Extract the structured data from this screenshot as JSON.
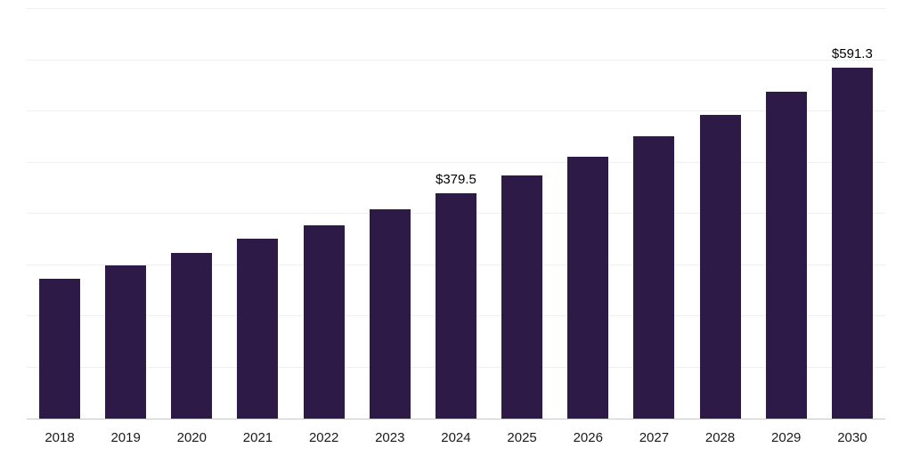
{
  "chart_data": {
    "type": "bar",
    "title": "",
    "xlabel": "",
    "ylabel": "",
    "categories": [
      "2018",
      "2019",
      "2020",
      "2021",
      "2022",
      "2023",
      "2024",
      "2025",
      "2026",
      "2027",
      "2028",
      "2029",
      "2030"
    ],
    "values": [
      236,
      258,
      279,
      303,
      326,
      352,
      379.5,
      409,
      441,
      475,
      511,
      550,
      591.3
    ],
    "data_labels": [
      "",
      "",
      "",
      "",
      "",
      "",
      "$379.5",
      "",
      "",
      "",
      "",
      "",
      "$591.3"
    ],
    "ylim": [
      0,
      690
    ],
    "gridline_count": 8,
    "legend": "none",
    "bar_color": "#2e1a47",
    "grid_color": "#efefef",
    "axis_line_color": "#c9c9c9",
    "label_color": "#000000",
    "tick_label_color": "#1a1a1a"
  }
}
